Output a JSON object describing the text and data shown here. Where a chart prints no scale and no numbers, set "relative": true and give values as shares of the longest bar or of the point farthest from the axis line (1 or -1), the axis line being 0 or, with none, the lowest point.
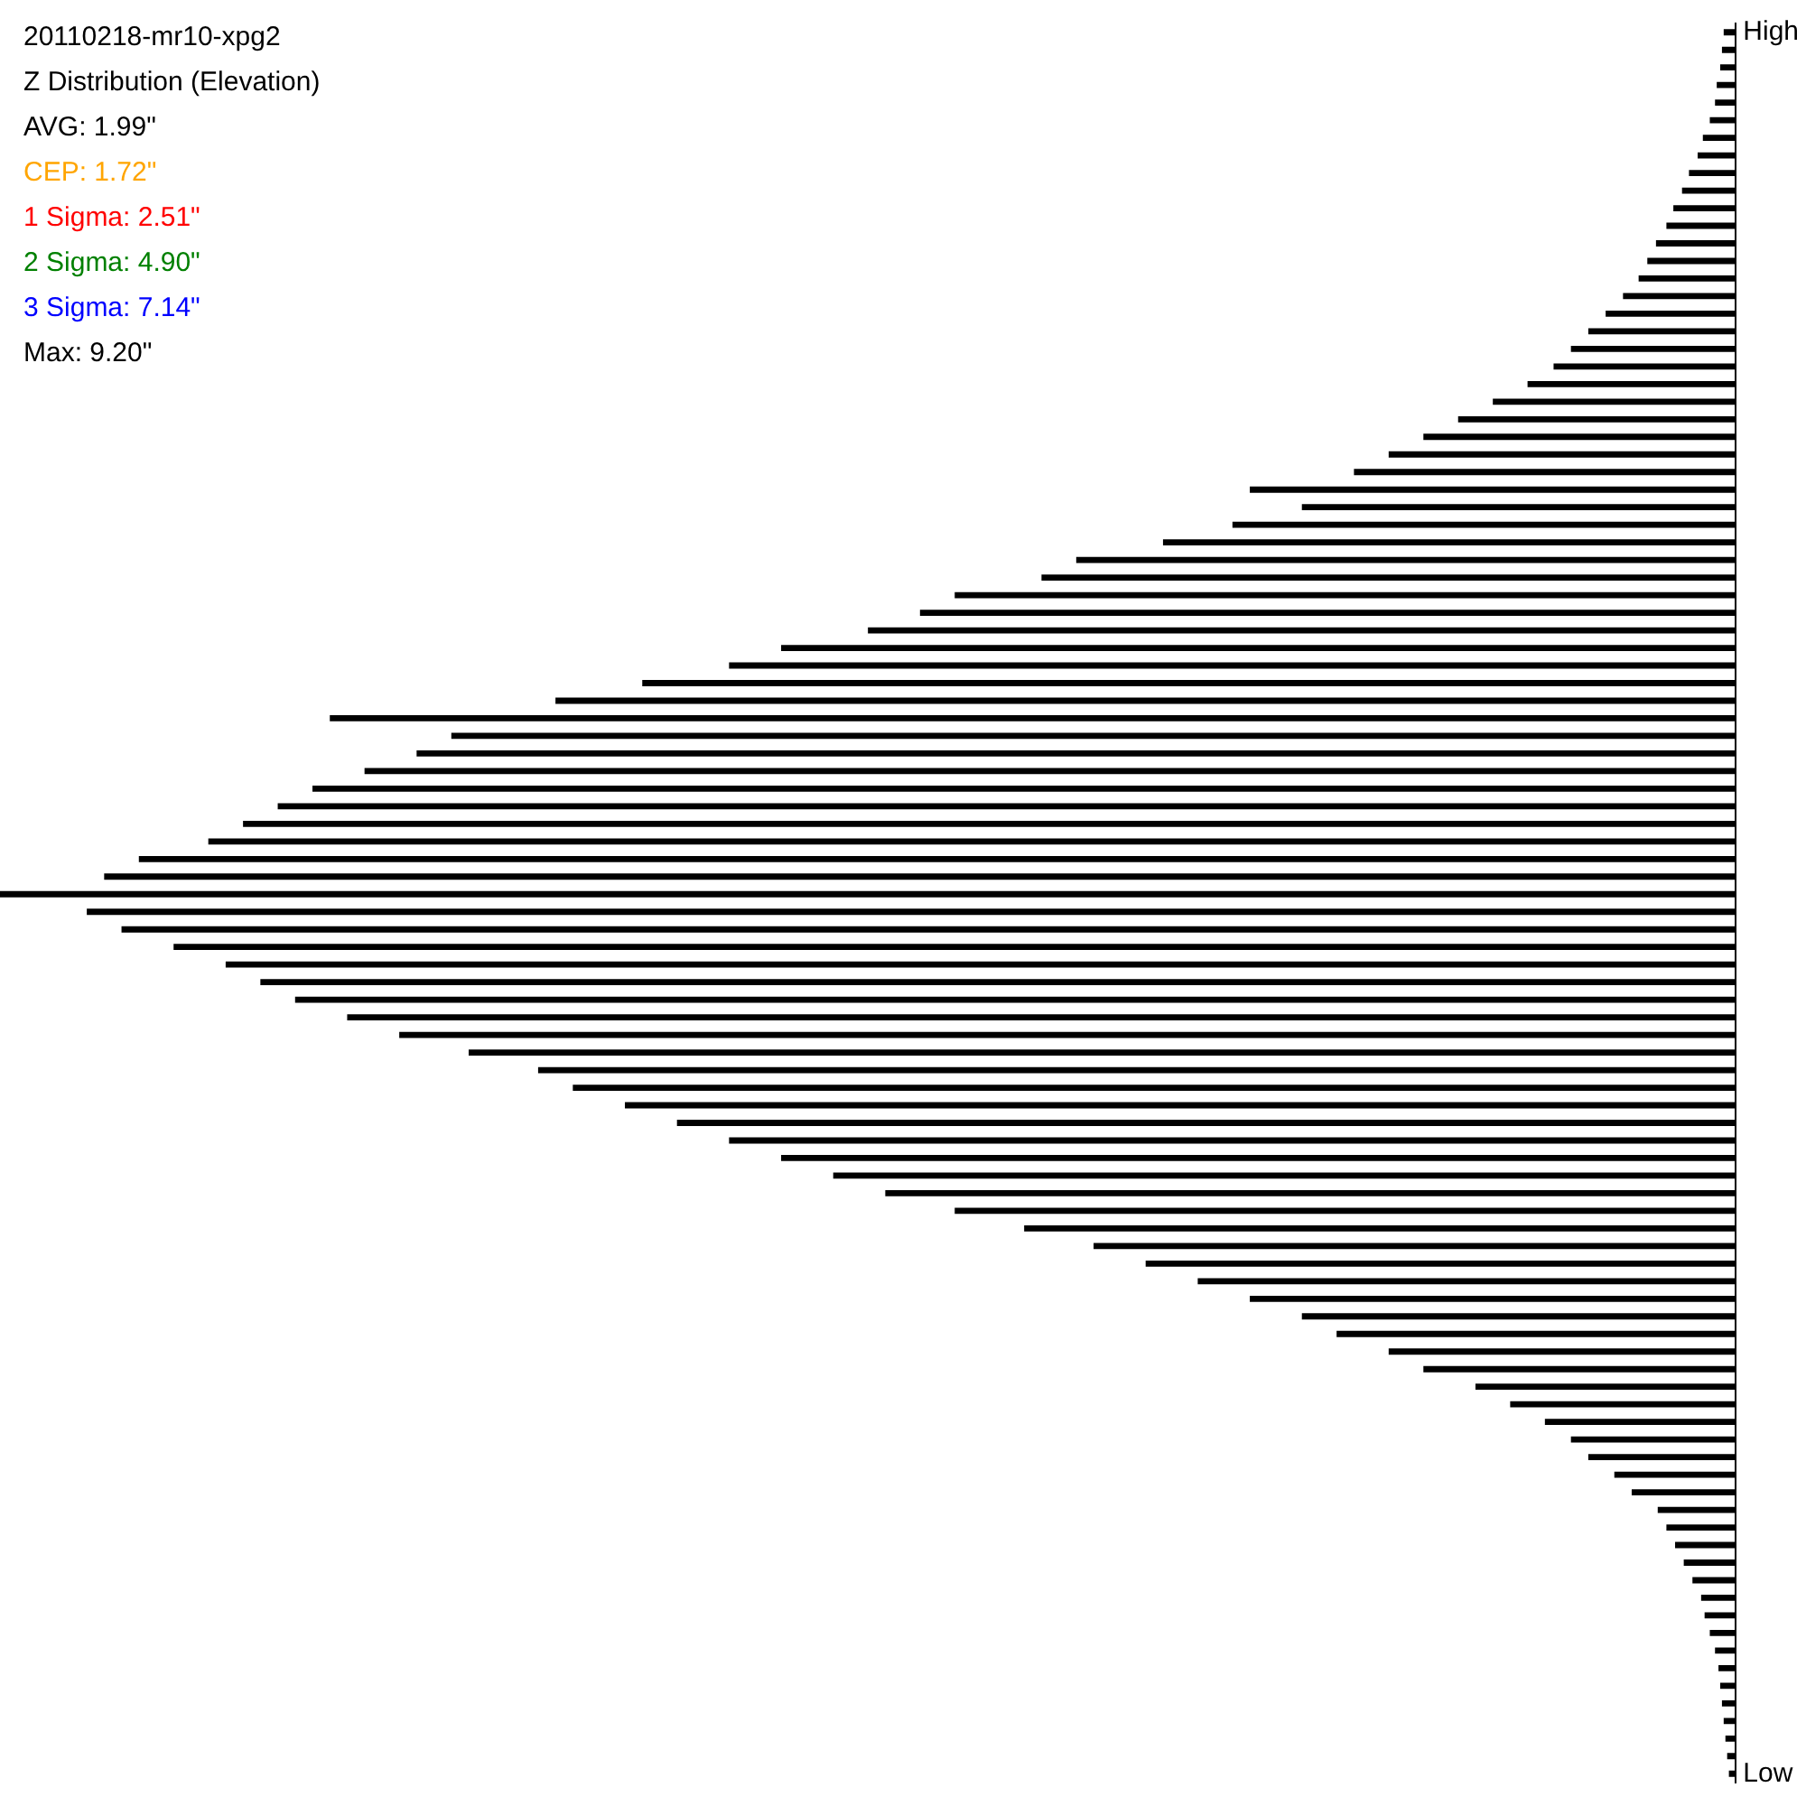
{
  "chart_data": {
    "type": "bar",
    "orientation": "horizontal",
    "relative": true,
    "title": "20110218-mr10-xpg2",
    "subtitle": "Z Distribution (Elevation)",
    "annotations": [
      "AVG: 1.99\"",
      "CEP: 1.72\"",
      "1 Sigma: 2.51\"",
      "2 Sigma: 4.90\"",
      "3 Sigma: 7.14\"",
      "Max: 9.20\""
    ],
    "color": "#000000",
    "categories": [
      "High",
      null,
      null,
      null,
      null,
      null,
      null,
      null,
      null,
      null,
      null,
      null,
      null,
      null,
      null,
      null,
      null,
      null,
      null,
      null,
      null,
      null,
      null,
      null,
      null,
      null,
      null,
      null,
      null,
      null,
      null,
      null,
      null,
      null,
      null,
      null,
      null,
      null,
      null,
      null,
      null,
      null,
      null,
      null,
      null,
      null,
      null,
      null,
      null,
      null,
      null,
      null,
      null,
      null,
      null,
      null,
      null,
      null,
      null,
      null,
      null,
      null,
      null,
      null,
      null,
      null,
      null,
      null,
      null,
      null,
      null,
      null,
      null,
      null,
      null,
      null,
      null,
      null,
      null,
      null,
      null,
      null,
      null,
      null,
      null,
      null,
      null,
      null,
      null,
      null,
      null,
      null,
      null,
      null,
      null,
      null,
      null,
      null,
      null,
      "Low"
    ],
    "values": [
      -0.007,
      -0.008,
      -0.009,
      -0.011,
      -0.012,
      -0.015,
      -0.019,
      -0.022,
      -0.027,
      -0.031,
      -0.036,
      -0.04,
      -0.046,
      -0.051,
      -0.056,
      -0.065,
      -0.075,
      -0.085,
      -0.095,
      -0.105,
      -0.12,
      -0.14,
      -0.16,
      -0.18,
      -0.2,
      -0.22,
      -0.28,
      -0.25,
      -0.29,
      -0.33,
      -0.38,
      -0.4,
      -0.45,
      -0.47,
      -0.5,
      -0.55,
      -0.58,
      -0.63,
      -0.68,
      -0.81,
      -0.74,
      -0.76,
      -0.79,
      -0.82,
      -0.84,
      -0.86,
      -0.88,
      -0.92,
      -0.94,
      -1,
      -0.95,
      -0.93,
      -0.9,
      -0.87,
      -0.85,
      -0.83,
      -0.8,
      -0.77,
      -0.73,
      -0.69,
      -0.67,
      -0.64,
      -0.61,
      -0.58,
      -0.55,
      -0.52,
      -0.49,
      -0.45,
      -0.41,
      -0.37,
      -0.34,
      -0.31,
      -0.28,
      -0.25,
      -0.23,
      -0.2,
      -0.18,
      -0.15,
      -0.13,
      -0.11,
      -0.095,
      -0.085,
      -0.07,
      -0.06,
      -0.045,
      -0.04,
      -0.035,
      -0.03,
      -0.025,
      -0.02,
      -0.018,
      -0.015,
      -0.012,
      -0.01,
      -0.009,
      -0.008,
      -0.007,
      -0.006,
      -0.005,
      -0.004
    ]
  }
}
